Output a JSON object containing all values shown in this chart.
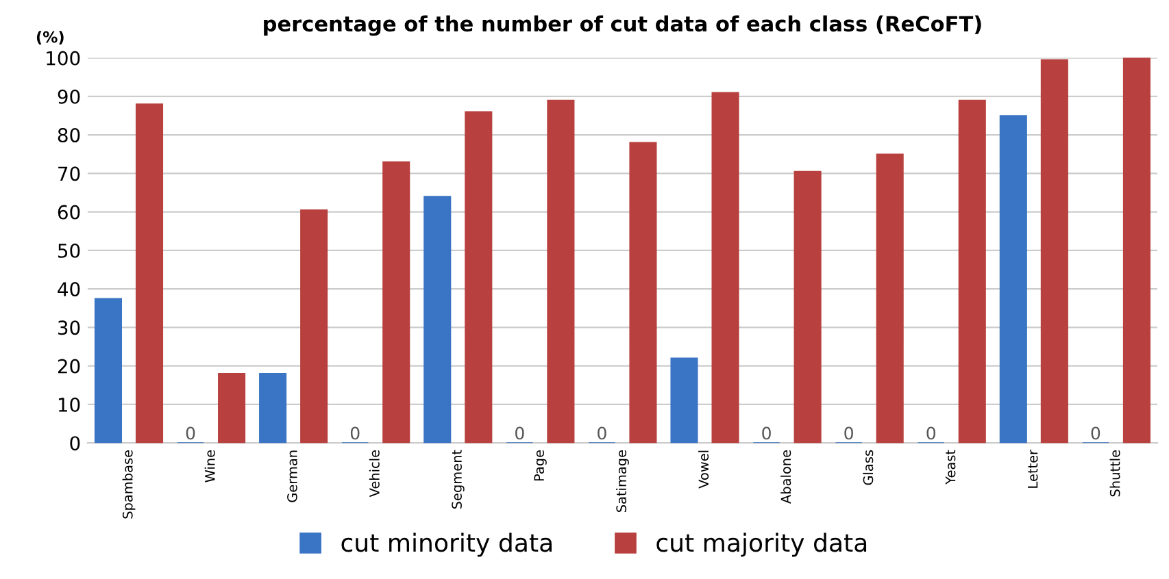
{
  "chart_data": {
    "type": "bar",
    "title": "percentage of the number of cut data of each class (ReCoFT)",
    "ylabel": "(%)",
    "categories": [
      "Spambase",
      "Wine",
      "German",
      "Vehicle",
      "Segment",
      "Page",
      "Satimage",
      "Vowel",
      "Abalone",
      "Glass",
      "Yeast",
      "Letter",
      "Shuttle"
    ],
    "series": [
      {
        "name": "cut minority data",
        "color": "#3a74c4",
        "values": [
          37.5,
          0,
          18,
          0,
          64,
          0,
          0,
          22,
          0,
          0,
          0,
          85,
          0
        ],
        "value_labels": [
          null,
          "0",
          null,
          "0",
          null,
          "0",
          "0",
          null,
          "0",
          "0",
          "0",
          null,
          "0"
        ]
      },
      {
        "name": "cut majority data",
        "color": "#b8403e",
        "values": [
          88,
          18,
          60.5,
          73,
          86,
          89,
          78,
          91,
          70.5,
          75,
          89,
          99.5,
          100
        ]
      }
    ],
    "ylim": [
      0,
      100
    ],
    "yticks": [
      0,
      10,
      20,
      30,
      40,
      50,
      60,
      70,
      80,
      90,
      100
    ],
    "grid": "y",
    "legend": "bottom"
  }
}
